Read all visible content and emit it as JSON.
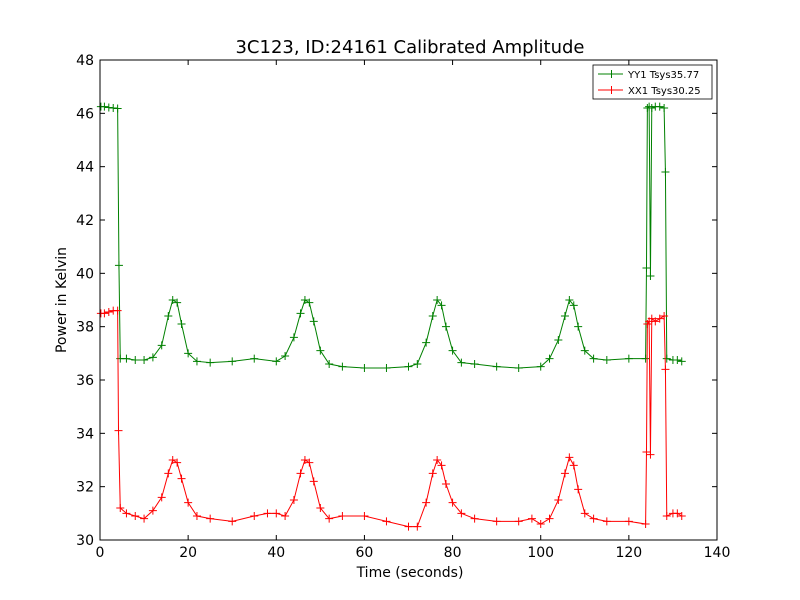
{
  "chart_data": {
    "type": "line",
    "title": "3C123, ID:24161 Calibrated Amplitude",
    "xlabel": "Time (seconds)",
    "ylabel": "Power in Kelvin",
    "xlim": [
      0,
      140
    ],
    "ylim": [
      30,
      48
    ],
    "xticks": [
      0,
      20,
      40,
      60,
      80,
      100,
      120,
      140
    ],
    "yticks": [
      30,
      32,
      34,
      36,
      38,
      40,
      42,
      44,
      46,
      48
    ],
    "grid": false,
    "legend_position": "top-right",
    "marker": "+",
    "series": [
      {
        "name": "YY1 Tsys35.77",
        "color": "#008000",
        "points": [
          [
            0.2,
            46.25
          ],
          [
            1.0,
            46.25
          ],
          [
            2.0,
            46.22
          ],
          [
            3.0,
            46.2
          ],
          [
            4.0,
            46.18
          ],
          [
            4.3,
            40.3
          ],
          [
            4.6,
            36.8
          ],
          [
            6,
            36.8
          ],
          [
            8,
            36.75
          ],
          [
            10,
            36.75
          ],
          [
            12,
            36.85
          ],
          [
            14,
            37.3
          ],
          [
            15.5,
            38.4
          ],
          [
            16.5,
            39.0
          ],
          [
            17.5,
            38.9
          ],
          [
            18.5,
            38.1
          ],
          [
            20,
            37.0
          ],
          [
            22,
            36.7
          ],
          [
            25,
            36.65
          ],
          [
            30,
            36.7
          ],
          [
            35,
            36.8
          ],
          [
            40,
            36.7
          ],
          [
            42,
            36.9
          ],
          [
            44,
            37.6
          ],
          [
            45.5,
            38.5
          ],
          [
            46.5,
            39.0
          ],
          [
            47.5,
            38.9
          ],
          [
            48.5,
            38.2
          ],
          [
            50,
            37.1
          ],
          [
            52,
            36.6
          ],
          [
            55,
            36.5
          ],
          [
            60,
            36.45
          ],
          [
            65,
            36.45
          ],
          [
            70,
            36.5
          ],
          [
            72,
            36.6
          ],
          [
            74,
            37.4
          ],
          [
            75.5,
            38.4
          ],
          [
            76.5,
            39.0
          ],
          [
            77.5,
            38.8
          ],
          [
            78.5,
            38.0
          ],
          [
            80,
            37.1
          ],
          [
            82,
            36.65
          ],
          [
            85,
            36.6
          ],
          [
            90,
            36.5
          ],
          [
            95,
            36.45
          ],
          [
            100,
            36.5
          ],
          [
            102,
            36.8
          ],
          [
            104,
            37.5
          ],
          [
            105.5,
            38.4
          ],
          [
            106.5,
            39.0
          ],
          [
            107.5,
            38.8
          ],
          [
            108.5,
            38.0
          ],
          [
            110,
            37.1
          ],
          [
            112,
            36.8
          ],
          [
            115,
            36.75
          ],
          [
            120,
            36.8
          ],
          [
            123.8,
            36.8
          ],
          [
            124.0,
            40.2
          ],
          [
            124.2,
            46.2
          ],
          [
            124.6,
            46.25
          ],
          [
            124.9,
            39.9
          ],
          [
            125.2,
            46.2
          ],
          [
            126,
            46.25
          ],
          [
            127,
            46.25
          ],
          [
            128,
            46.2
          ],
          [
            128.3,
            43.8
          ],
          [
            128.6,
            36.8
          ],
          [
            130,
            36.75
          ],
          [
            131,
            36.75
          ],
          [
            132,
            36.7
          ]
        ]
      },
      {
        "name": "XX1 Tsys30.25",
        "color": "#ff0000",
        "points": [
          [
            0.2,
            38.5
          ],
          [
            1.0,
            38.5
          ],
          [
            2.0,
            38.55
          ],
          [
            3.0,
            38.6
          ],
          [
            4.0,
            38.6
          ],
          [
            4.2,
            34.1
          ],
          [
            4.6,
            31.2
          ],
          [
            6,
            31.0
          ],
          [
            8,
            30.9
          ],
          [
            10,
            30.8
          ],
          [
            12,
            31.1
          ],
          [
            14,
            31.6
          ],
          [
            15.5,
            32.5
          ],
          [
            16.5,
            33.0
          ],
          [
            17.5,
            32.9
          ],
          [
            18.5,
            32.3
          ],
          [
            20,
            31.4
          ],
          [
            22,
            30.9
          ],
          [
            25,
            30.8
          ],
          [
            30,
            30.7
          ],
          [
            35,
            30.9
          ],
          [
            38,
            31.0
          ],
          [
            40,
            31.0
          ],
          [
            42,
            30.9
          ],
          [
            44,
            31.5
          ],
          [
            45.5,
            32.5
          ],
          [
            46.5,
            33.0
          ],
          [
            47.5,
            32.9
          ],
          [
            48.5,
            32.2
          ],
          [
            50,
            31.2
          ],
          [
            52,
            30.8
          ],
          [
            55,
            30.9
          ],
          [
            60,
            30.9
          ],
          [
            65,
            30.7
          ],
          [
            70,
            30.5
          ],
          [
            72,
            30.5
          ],
          [
            74,
            31.4
          ],
          [
            75.5,
            32.5
          ],
          [
            76.5,
            33.0
          ],
          [
            77.5,
            32.8
          ],
          [
            78.5,
            32.1
          ],
          [
            80,
            31.4
          ],
          [
            82,
            31.0
          ],
          [
            85,
            30.8
          ],
          [
            90,
            30.7
          ],
          [
            95,
            30.7
          ],
          [
            98,
            30.8
          ],
          [
            100,
            30.6
          ],
          [
            102,
            30.8
          ],
          [
            104,
            31.5
          ],
          [
            105.5,
            32.5
          ],
          [
            106.5,
            33.1
          ],
          [
            107.5,
            32.8
          ],
          [
            108.5,
            31.9
          ],
          [
            110,
            31.0
          ],
          [
            112,
            30.8
          ],
          [
            115,
            30.7
          ],
          [
            120,
            30.7
          ],
          [
            123.8,
            30.6
          ],
          [
            124.0,
            33.3
          ],
          [
            124.2,
            38.1
          ],
          [
            124.6,
            38.2
          ],
          [
            124.9,
            33.2
          ],
          [
            125.2,
            38.3
          ],
          [
            126,
            38.2
          ],
          [
            127,
            38.3
          ],
          [
            128,
            38.4
          ],
          [
            128.3,
            36.4
          ],
          [
            128.6,
            30.9
          ],
          [
            130,
            31.0
          ],
          [
            131,
            31.0
          ],
          [
            132,
            30.9
          ]
        ]
      }
    ]
  }
}
